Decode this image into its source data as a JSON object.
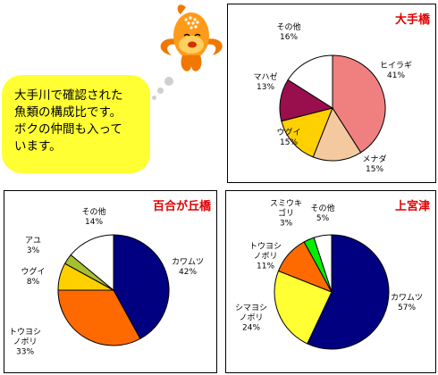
{
  "bubble": {
    "lines": [
      "大手川で確認された",
      "魚類の構成比です。",
      "ボクの仲間も入って",
      "います。"
    ]
  },
  "colors": {
    "title": "#e00000",
    "bubble": "#ffff33",
    "slice_colors": {
      "pink": "#f08080",
      "peach": "#f5c9a0",
      "gold": "#ffd000",
      "maroon": "#990f4e",
      "white": "#ffffff",
      "navy": "#000080",
      "orange": "#ff6a00",
      "yellow": "#ffff33",
      "olive": "#a7c030",
      "green": "#00ee00"
    }
  },
  "chart_data": [
    {
      "type": "pie",
      "title": "大手橋",
      "series": [
        {
          "label": "ヒイラギ\n41%",
          "value": 41,
          "color": "pink"
        },
        {
          "label": "メナダ\n15%",
          "value": 15,
          "color": "peach"
        },
        {
          "label": "ウグイ\n15%",
          "value": 15,
          "color": "gold"
        },
        {
          "label": "マハゼ\n13%",
          "value": 13,
          "color": "maroon"
        },
        {
          "label": "その他\n16%",
          "value": 16,
          "color": "white"
        }
      ]
    },
    {
      "type": "pie",
      "title": "百合が丘橋",
      "series": [
        {
          "label": "カワムツ\n42%",
          "value": 42,
          "color": "navy"
        },
        {
          "label": "トウヨシ\nノボリ\n33%",
          "value": 33,
          "color": "orange"
        },
        {
          "label": "ウグイ\n8%",
          "value": 8,
          "color": "gold"
        },
        {
          "label": "アユ\n3%",
          "value": 3,
          "color": "olive"
        },
        {
          "label": "その他\n14%",
          "value": 14,
          "color": "white"
        }
      ]
    },
    {
      "type": "pie",
      "title": "上宮津",
      "series": [
        {
          "label": "カワムツ\n57%",
          "value": 57,
          "color": "navy"
        },
        {
          "label": "シマヨシ\nノボリ\n24%",
          "value": 24,
          "color": "yellow"
        },
        {
          "label": "トウヨシ\nノボリ\n11%",
          "value": 11,
          "color": "orange"
        },
        {
          "label": "スミウキ\nゴリ\n3%",
          "value": 3,
          "color": "green"
        },
        {
          "label": "その他\n5%",
          "value": 5,
          "color": "white"
        }
      ]
    }
  ]
}
